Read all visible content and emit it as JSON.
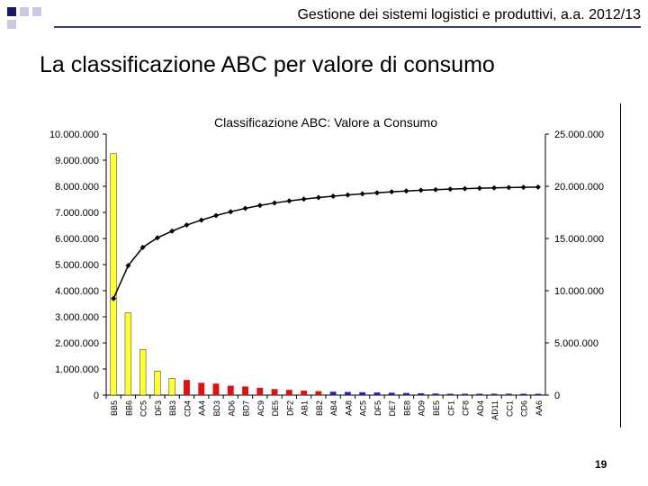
{
  "header": {
    "course": "Gestione dei sistemi logistici e produttivi, a.a. 2012/13"
  },
  "slide": {
    "title": "La classificazione ABC per valore di consumo",
    "page_number": "19"
  },
  "colors": {
    "class_a": "#ffff33",
    "class_b": "#dd1111",
    "class_c": "#2222aa",
    "cumulative_line": "#000000",
    "header_line": "#3a3a8c"
  },
  "chart_data": {
    "type": "bar",
    "title": "Classificazione ABC: Valore a Consumo",
    "xlabel": "",
    "ylabel": "",
    "grid": false,
    "legend": "none",
    "categories": [
      "BB5",
      "BB6",
      "CC5",
      "DF3",
      "BB3",
      "CD4",
      "AA4",
      "BD3",
      "AD6",
      "BD7",
      "AC9",
      "DE5",
      "DF2",
      "AB1",
      "BB2",
      "AB4",
      "AA8",
      "AC5",
      "DF5",
      "DE7",
      "BE8",
      "AD9",
      "BE5",
      "CF1",
      "CF8",
      "AD4",
      "AD11",
      "CC1",
      "CD6",
      "AA6"
    ],
    "class": [
      "A",
      "A",
      "A",
      "A",
      "A",
      "B",
      "B",
      "B",
      "B",
      "B",
      "B",
      "B",
      "B",
      "B",
      "B",
      "C",
      "C",
      "C",
      "C",
      "C",
      "C",
      "C",
      "C",
      "C",
      "C",
      "C",
      "C",
      "C",
      "C",
      "C"
    ],
    "y_left": {
      "range": [
        0,
        10000000
      ],
      "ticks": [
        "0",
        "1.000.000",
        "2.000.000",
        "3.000.000",
        "4.000.000",
        "5.000.000",
        "6.000.000",
        "7.000.000",
        "8.000.000",
        "9.000.000",
        "10.000.000"
      ]
    },
    "y_right": {
      "range": [
        0,
        25000000
      ],
      "ticks": [
        "0",
        "5.000.000",
        "10.000.000",
        "15.000.000",
        "20.000.000",
        "25.000.000"
      ]
    },
    "series": [
      {
        "type": "bar",
        "axis": "left",
        "values": [
          9250000,
          3150000,
          1750000,
          920000,
          640000,
          580000,
          470000,
          440000,
          360000,
          330000,
          280000,
          230000,
          200000,
          170000,
          150000,
          130000,
          120000,
          110000,
          100000,
          90000,
          80000,
          70000,
          60000,
          50000,
          45000,
          40000,
          35000,
          30000,
          25000,
          20000
        ]
      },
      {
        "type": "line",
        "axis": "right",
        "values": [
          9250000,
          12400000,
          14150000,
          15070000,
          15710000,
          16290000,
          16760000,
          17200000,
          17560000,
          17890000,
          18170000,
          18400000,
          18600000,
          18770000,
          18920000,
          19050000,
          19170000,
          19280000,
          19380000,
          19470000,
          19550000,
          19620000,
          19680000,
          19730000,
          19775000,
          19815000,
          19850000,
          19880000,
          19905000,
          19925000
        ]
      }
    ]
  }
}
